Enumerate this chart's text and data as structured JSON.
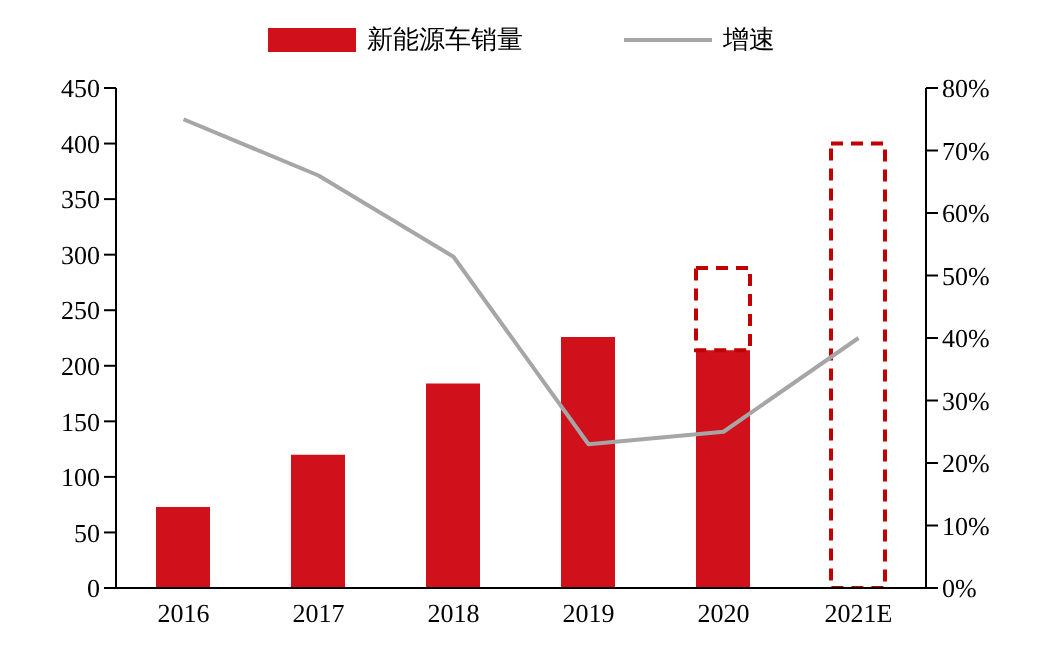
{
  "chart_data": {
    "type": "bar",
    "categories": [
      "2016",
      "2017",
      "2018",
      "2019",
      "2020",
      "2021E"
    ],
    "stacked": true,
    "series": [
      {
        "name": "新能源车销量",
        "color": "#d0101a",
        "values": [
          73,
          120,
          184,
          226,
          214,
          null
        ]
      },
      {
        "color": "#c00000",
        "line_style": "dashed",
        "values": [
          null,
          null,
          null,
          null,
          74,
          400
        ]
      },
      {
        "name": "增速",
        "type": "line",
        "axis": "y2",
        "color": "#a6a6a6",
        "marker": "none",
        "values": [
          75,
          66,
          53,
          23,
          25,
          40
        ]
      }
    ],
    "ylim": [
      0,
      450
    ],
    "yticks": [
      0,
      50,
      100,
      150,
      200,
      250,
      300,
      350,
      400,
      450
    ],
    "y2lim": [
      0,
      80
    ],
    "y2ticks": [
      {
        "value": 0,
        "label": "0%"
      },
      {
        "value": 10,
        "label": "10%"
      },
      {
        "value": 20,
        "label": "20%"
      },
      {
        "value": 30,
        "label": "30%"
      },
      {
        "value": 40,
        "label": "40%"
      },
      {
        "value": 50,
        "label": "50%"
      },
      {
        "value": 60,
        "label": "60%"
      },
      {
        "value": 70,
        "label": "70%"
      },
      {
        "value": 80,
        "label": "80%"
      }
    ],
    "grid": false,
    "legend": "top"
  }
}
